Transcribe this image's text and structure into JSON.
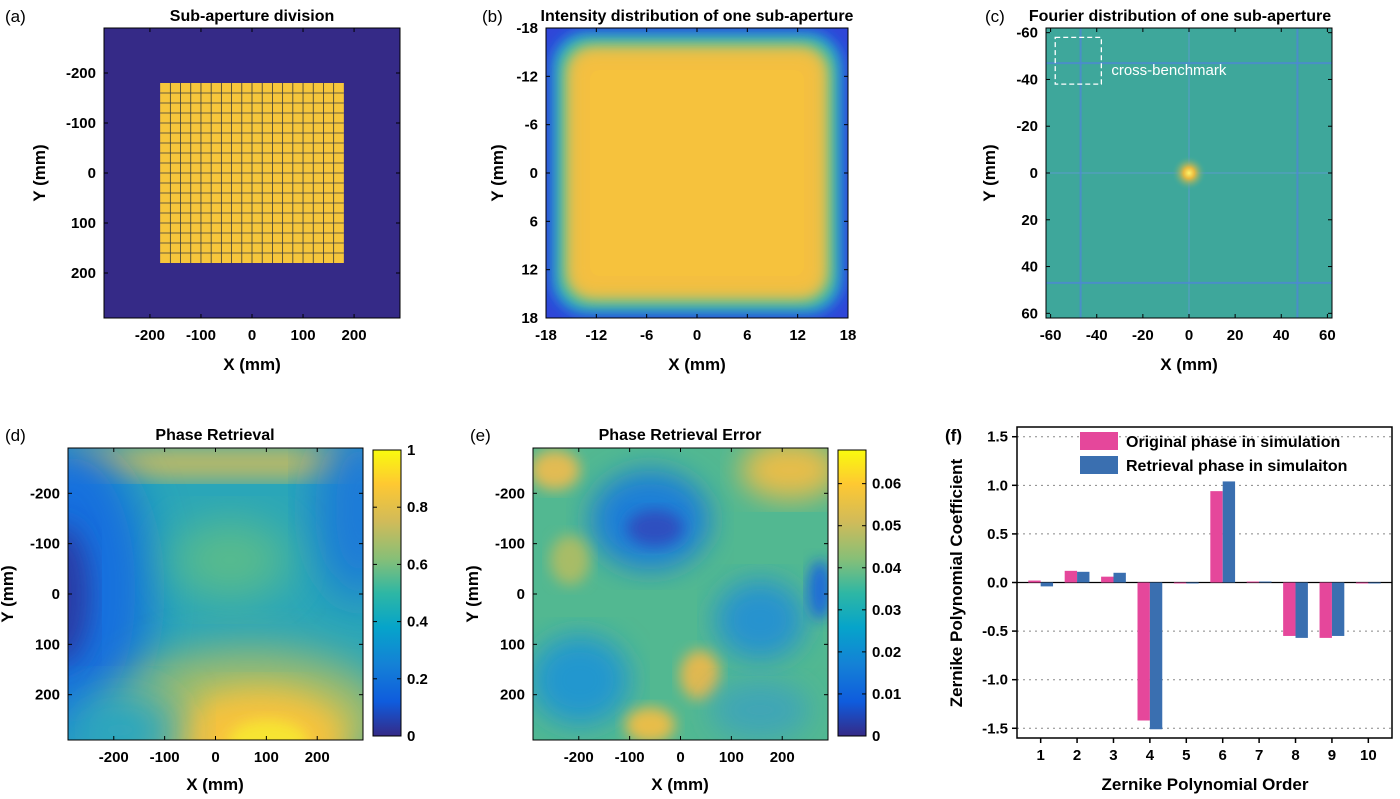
{
  "chart_data": [
    {
      "panel": "(a)",
      "type": "heatmap",
      "title": "Sub-aperture division",
      "xlabel": "X (mm)",
      "ylabel": "Y (mm)",
      "xlim": [
        -290,
        290
      ],
      "ylim": [
        -290,
        290
      ],
      "y_reversed": true,
      "xticks": [
        -200,
        -100,
        0,
        100,
        200
      ],
      "yticks": [
        -200,
        -100,
        0,
        100,
        200
      ],
      "grid_extent": [
        -180,
        180
      ],
      "grid_cells": 18,
      "colors": {
        "background": "#352a87",
        "cell": "#f6c63b",
        "grid_line": "#3a3a3a"
      }
    },
    {
      "panel": "(b)",
      "type": "heatmap",
      "title": "Intensity distribution of one sub-aperture",
      "xlabel": "X (mm)",
      "ylabel": "Y (mm)",
      "xlim": [
        -18,
        18
      ],
      "ylim": [
        -18,
        18
      ],
      "y_reversed": true,
      "xticks": [
        -18,
        -12,
        -6,
        0,
        6,
        12,
        18
      ],
      "yticks": [
        -18,
        -12,
        -6,
        0,
        6,
        12,
        18
      ]
    },
    {
      "panel": "(c)",
      "type": "heatmap",
      "title": "Fourier distribution of one sub-aperture",
      "xlabel": "X (mm)",
      "ylabel": "Y (mm)",
      "xlim": [
        -62,
        62
      ],
      "ylim": [
        -62,
        62
      ],
      "y_reversed": true,
      "xticks": [
        -60,
        -40,
        -20,
        0,
        20,
        40,
        60
      ],
      "yticks": [
        -60,
        -40,
        -20,
        0,
        20,
        40,
        60
      ],
      "annotation": "cross-benchmark"
    },
    {
      "panel": "(d)",
      "type": "heatmap",
      "title": "Phase Retrieval",
      "xlabel": "X (mm)",
      "ylabel": "Y (mm)",
      "xlim": [
        -290,
        290
      ],
      "ylim": [
        -290,
        290
      ],
      "y_reversed": true,
      "xticks": [
        -200,
        -100,
        0,
        100,
        200
      ],
      "yticks": [
        -200,
        -100,
        0,
        100,
        200
      ],
      "colorbar": {
        "min": 0,
        "max": 1,
        "ticks": [
          0,
          0.2,
          0.4,
          0.6,
          0.8,
          1
        ],
        "tick_labels": [
          "0",
          "0.2",
          "0.4",
          "0.6",
          "0.8",
          "1"
        ]
      }
    },
    {
      "panel": "(e)",
      "type": "heatmap",
      "title": "Phase Retrieval Error",
      "xlabel": "X (mm)",
      "ylabel": "Y (mm)",
      "xlim": [
        -290,
        290
      ],
      "ylim": [
        -290,
        290
      ],
      "y_reversed": true,
      "xticks": [
        -200,
        -100,
        0,
        100,
        200
      ],
      "yticks": [
        -200,
        -100,
        0,
        100,
        200
      ],
      "colorbar": {
        "min": 0,
        "max": 0.068,
        "ticks": [
          0,
          0.01,
          0.02,
          0.03,
          0.04,
          0.05,
          0.06
        ],
        "tick_labels": [
          "0",
          "0.01",
          "0.02",
          "0.03",
          "0.04",
          "0.05",
          "0.06"
        ]
      }
    },
    {
      "panel": "(f)",
      "type": "bar",
      "xlabel": "Zernike Polynomial Order",
      "ylabel": "Zernike Polynomial Coefficient",
      "ylim": [
        -1.6,
        1.6
      ],
      "yticks": [
        1.5,
        1.0,
        0.5,
        0.0,
        -0.5,
        -1.0,
        -1.5
      ],
      "ytick_labels": [
        "1.5",
        "1.0",
        "0.5",
        "0.0",
        "-0.5",
        "-1.0",
        "-1.5"
      ],
      "grid": "horizontal dotted",
      "legend_position": "top",
      "categories": [
        "1",
        "2",
        "3",
        "4",
        "5",
        "6",
        "7",
        "8",
        "9",
        "10"
      ],
      "series": [
        {
          "name": "Original phase in simulation",
          "color": "#e5479b",
          "values": [
            0.02,
            0.12,
            0.06,
            -1.42,
            -0.01,
            0.94,
            0.01,
            -0.55,
            -0.57,
            -0.01
          ]
        },
        {
          "name": "Retrieval phase in simulaiton",
          "color": "#3a6fb0",
          "values": [
            -0.04,
            0.11,
            0.1,
            -1.51,
            -0.01,
            1.04,
            0.01,
            -0.57,
            -0.55,
            -0.01
          ]
        }
      ]
    }
  ]
}
